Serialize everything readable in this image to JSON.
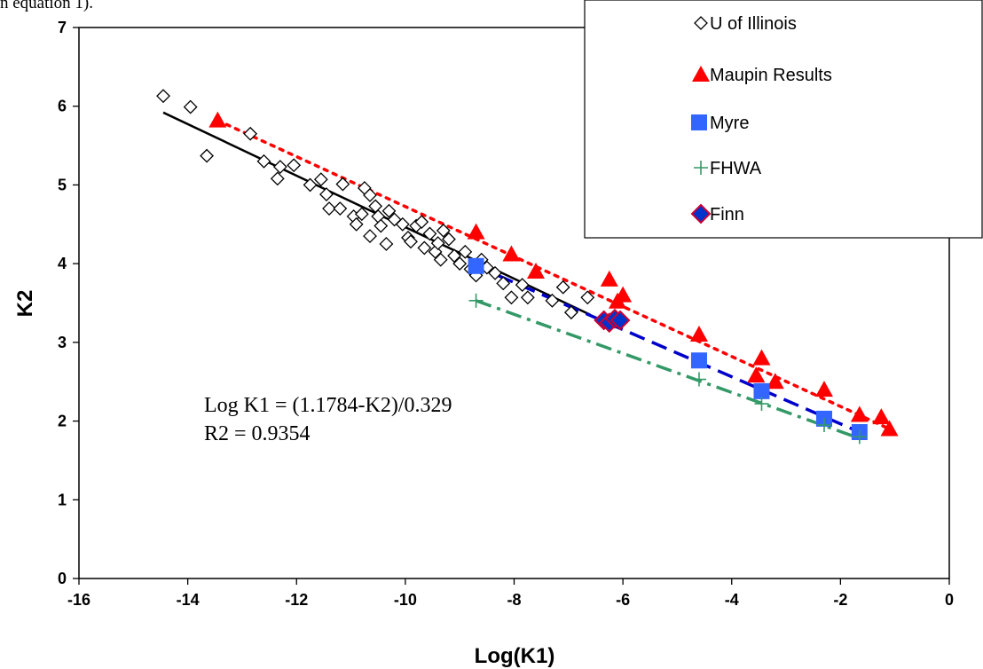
{
  "caption_fragment": "n equation 1).",
  "chart_data": {
    "type": "scatter",
    "title": "",
    "xlabel": "Log(K1)",
    "ylabel": "K2",
    "xlim": [
      -16,
      0
    ],
    "ylim": [
      0,
      7
    ],
    "xticks": [
      "-16",
      "-14",
      "-12",
      "-10",
      "-8",
      "-6",
      "-4",
      "-2",
      "0"
    ],
    "yticks": [
      "0",
      "1",
      "2",
      "3",
      "4",
      "5",
      "6",
      "7"
    ],
    "grid": false,
    "legend_position": "top-right",
    "annotation": {
      "line1": "Log K1 = (1.1784-K2)/0.329",
      "line2": "R2 = 0.9354"
    },
    "colors": {
      "uofi": "#000000",
      "maupin": "#ff0000",
      "myre": "#3366ff",
      "myre_line": "#0000cc",
      "fhwa": "#339966",
      "finn_fill": "#0033cc",
      "finn_edge": "#cc0033"
    },
    "series": [
      {
        "name": "U of Illinois",
        "marker": "diamond-open",
        "points": [
          [
            -14.45,
            6.13
          ],
          [
            -13.95,
            5.99
          ],
          [
            -13.65,
            5.37
          ],
          [
            -12.85,
            5.65
          ],
          [
            -12.6,
            5.3
          ],
          [
            -12.35,
            5.08
          ],
          [
            -12.3,
            5.23
          ],
          [
            -12.05,
            5.25
          ],
          [
            -11.75,
            5.0
          ],
          [
            -11.55,
            5.07
          ],
          [
            -11.45,
            4.88
          ],
          [
            -11.4,
            4.7
          ],
          [
            -11.2,
            4.7
          ],
          [
            -11.15,
            5.01
          ],
          [
            -10.95,
            4.6
          ],
          [
            -10.9,
            4.5
          ],
          [
            -10.8,
            4.63
          ],
          [
            -10.75,
            4.96
          ],
          [
            -10.65,
            4.87
          ],
          [
            -10.55,
            4.73
          ],
          [
            -10.5,
            4.6
          ],
          [
            -10.45,
            4.48
          ],
          [
            -10.35,
            4.25
          ],
          [
            -10.3,
            4.67
          ],
          [
            -10.2,
            4.56
          ],
          [
            -10.05,
            4.5
          ],
          [
            -9.95,
            4.33
          ],
          [
            -9.9,
            4.28
          ],
          [
            -9.8,
            4.48
          ],
          [
            -9.7,
            4.53
          ],
          [
            -9.55,
            4.38
          ],
          [
            -9.45,
            4.15
          ],
          [
            -9.4,
            4.26
          ],
          [
            -9.3,
            4.42
          ],
          [
            -9.2,
            4.31
          ],
          [
            -9.1,
            4.1
          ],
          [
            -9.0,
            4.0
          ],
          [
            -8.9,
            4.15
          ],
          [
            -8.8,
            3.93
          ],
          [
            -8.7,
            3.85
          ],
          [
            -8.6,
            4.05
          ],
          [
            -8.5,
            3.95
          ],
          [
            -8.35,
            3.88
          ],
          [
            -8.2,
            3.75
          ],
          [
            -8.05,
            3.57
          ],
          [
            -7.85,
            3.73
          ],
          [
            -7.75,
            3.57
          ],
          [
            -7.3,
            3.53
          ],
          [
            -7.1,
            3.7
          ],
          [
            -6.95,
            3.38
          ],
          [
            -6.65,
            3.57
          ],
          [
            -9.65,
            4.2
          ],
          [
            -9.35,
            4.05
          ],
          [
            -10.65,
            4.35
          ]
        ]
      },
      {
        "name": "Maupin Results",
        "marker": "triangle",
        "points": [
          [
            -13.45,
            5.82
          ],
          [
            -8.7,
            4.4
          ],
          [
            -8.05,
            4.12
          ],
          [
            -7.6,
            3.9
          ],
          [
            -6.25,
            3.8
          ],
          [
            -6.1,
            3.52
          ],
          [
            -6.0,
            3.6
          ],
          [
            -4.6,
            3.1
          ],
          [
            -3.45,
            2.8
          ],
          [
            -3.55,
            2.58
          ],
          [
            -3.2,
            2.5
          ],
          [
            -2.3,
            2.4
          ],
          [
            -1.65,
            2.08
          ],
          [
            -1.25,
            2.05
          ],
          [
            -1.1,
            1.9
          ]
        ]
      },
      {
        "name": "Myre",
        "marker": "square",
        "points": [
          [
            -8.7,
            3.97
          ],
          [
            -4.6,
            2.77
          ],
          [
            -3.45,
            2.38
          ],
          [
            -2.3,
            2.03
          ],
          [
            -1.65,
            1.86
          ]
        ]
      },
      {
        "name": "FHWA",
        "marker": "plus",
        "points": [
          [
            -8.7,
            3.53
          ],
          [
            -4.6,
            2.53
          ],
          [
            -3.45,
            2.22
          ],
          [
            -2.3,
            1.95
          ],
          [
            -1.65,
            1.8
          ]
        ]
      },
      {
        "name": "Finn",
        "marker": "diamond-filled",
        "points": [
          [
            -6.35,
            3.28
          ],
          [
            -6.25,
            3.25
          ],
          [
            -6.15,
            3.3
          ],
          [
            -6.05,
            3.28
          ]
        ]
      }
    ],
    "trendlines": [
      {
        "series": "U of Illinois",
        "style": "solid",
        "from": [
          -14.45,
          5.92
        ],
        "to": [
          -6.6,
          3.35
        ]
      },
      {
        "series": "Maupin Results",
        "style": "dotted",
        "from": [
          -13.45,
          5.82
        ],
        "to": [
          -1.1,
          1.9
        ]
      },
      {
        "series": "Myre",
        "style": "dashed",
        "from": [
          -8.7,
          3.97
        ],
        "to": [
          -1.65,
          1.86
        ]
      },
      {
        "series": "FHWA",
        "style": "dashdot",
        "from": [
          -8.7,
          3.53
        ],
        "to": [
          -1.65,
          1.78
        ]
      }
    ]
  }
}
